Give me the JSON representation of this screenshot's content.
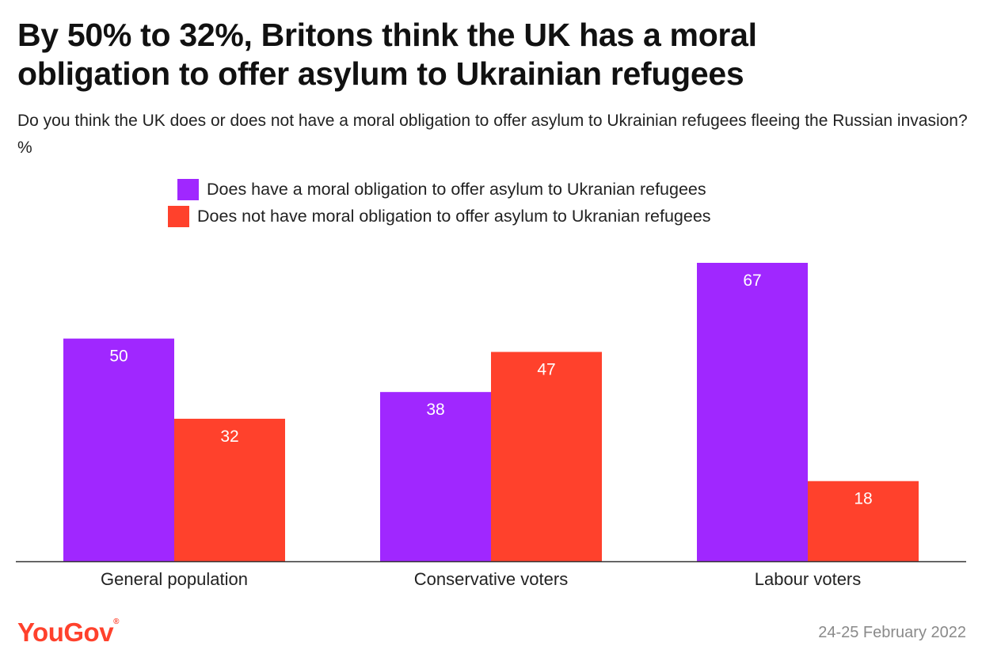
{
  "header": {
    "title_line1": "By 50% to 32%, Britons think the UK has a moral",
    "title_line2": "obligation to offer asylum to Ukrainian refugees",
    "subtitle": "Do you think the UK does or does not have a moral obligation to offer asylum to Ukrainian refugees fleeing the Russian invasion? %"
  },
  "legend": [
    {
      "label": "Does have a moral obligation to offer asylum to Ukranian refugees",
      "color": "#A027FF"
    },
    {
      "label": "Does not have moral obligation to offer asylum to Ukranian refugees",
      "color": "#FF412C"
    }
  ],
  "chart_data": {
    "type": "bar",
    "title": "By 50% to 32%, Britons think the UK has a moral obligation to offer asylum to Ukrainian refugees",
    "categories": [
      "General population",
      "Conservative voters",
      "Labour voters"
    ],
    "series": [
      {
        "name": "Does have a moral obligation to offer asylum to Ukranian refugees",
        "color": "#A027FF",
        "values": [
          50,
          38,
          67
        ]
      },
      {
        "name": "Does not have moral obligation to offer asylum to Ukranian refugees",
        "color": "#FF412C",
        "values": [
          32,
          47,
          18
        ]
      }
    ],
    "ylim": [
      0,
      67
    ],
    "xlabel": "",
    "ylabel": "",
    "grid": false,
    "legend_position": "top"
  },
  "footer": {
    "brand": "YouGov",
    "brand_color": "#FF412C",
    "date": "24-25 February 2022"
  }
}
